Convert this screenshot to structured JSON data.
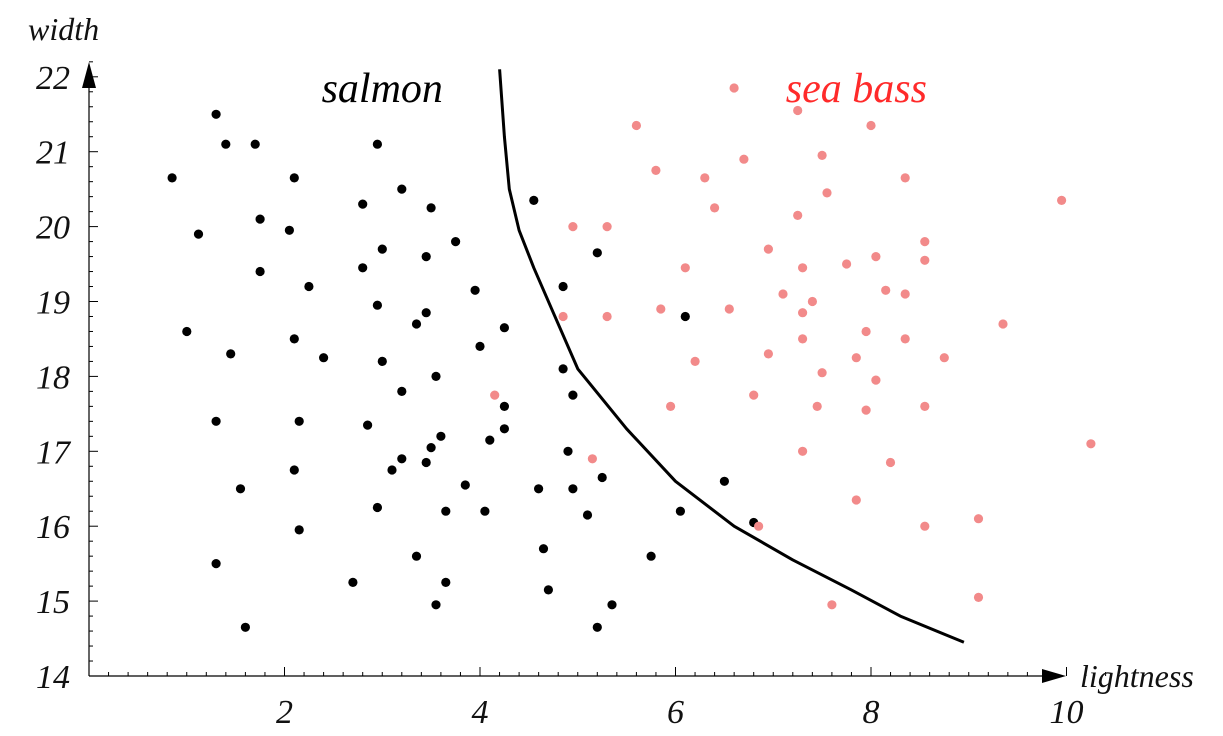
{
  "chart_data": {
    "type": "scatter",
    "xlabel": "lightness",
    "ylabel": "width",
    "xlim": [
      0,
      10.5
    ],
    "ylim": [
      14,
      22.4
    ],
    "x_ticks": [
      2,
      4,
      6,
      8,
      10
    ],
    "y_ticks": [
      14,
      15,
      16,
      17,
      18,
      19,
      20,
      21,
      22
    ],
    "grid": false,
    "colors": {
      "salmon": "#000000",
      "sea_bass": "#ff2a2a",
      "sea_bass_points": "#f28a8a",
      "boundary": "#000000",
      "axis": "#000000"
    },
    "series": [
      {
        "name": "salmon",
        "points": [
          [
            0.85,
            20.65
          ],
          [
            1.12,
            19.9
          ],
          [
            1.0,
            18.6
          ],
          [
            1.3,
            21.5
          ],
          [
            1.4,
            21.1
          ],
          [
            1.7,
            21.1
          ],
          [
            1.75,
            20.1
          ],
          [
            1.75,
            19.4
          ],
          [
            1.45,
            18.3
          ],
          [
            1.3,
            17.4
          ],
          [
            1.55,
            16.5
          ],
          [
            1.3,
            15.5
          ],
          [
            1.6,
            14.65
          ],
          [
            2.1,
            20.65
          ],
          [
            2.05,
            19.95
          ],
          [
            2.25,
            19.2
          ],
          [
            2.1,
            18.5
          ],
          [
            2.4,
            18.25
          ],
          [
            2.15,
            17.4
          ],
          [
            2.1,
            16.75
          ],
          [
            2.15,
            15.95
          ],
          [
            2.8,
            20.3
          ],
          [
            2.95,
            21.1
          ],
          [
            3.2,
            20.5
          ],
          [
            2.8,
            19.45
          ],
          [
            3.0,
            19.7
          ],
          [
            2.95,
            18.95
          ],
          [
            3.0,
            18.2
          ],
          [
            3.35,
            18.7
          ],
          [
            3.45,
            18.85
          ],
          [
            3.5,
            20.25
          ],
          [
            3.45,
            19.6
          ],
          [
            3.75,
            19.8
          ],
          [
            3.95,
            19.15
          ],
          [
            4.0,
            18.4
          ],
          [
            3.2,
            17.8
          ],
          [
            3.55,
            18.0
          ],
          [
            2.85,
            17.35
          ],
          [
            3.1,
            16.75
          ],
          [
            3.2,
            16.9
          ],
          [
            3.5,
            17.05
          ],
          [
            3.45,
            16.85
          ],
          [
            3.6,
            17.2
          ],
          [
            2.95,
            16.25
          ],
          [
            3.85,
            16.55
          ],
          [
            3.65,
            16.2
          ],
          [
            4.05,
            16.2
          ],
          [
            3.35,
            15.6
          ],
          [
            3.65,
            15.25
          ],
          [
            2.7,
            15.25
          ],
          [
            3.55,
            14.95
          ],
          [
            4.1,
            17.15
          ],
          [
            4.25,
            17.3
          ],
          [
            4.25,
            17.6
          ],
          [
            4.25,
            18.65
          ],
          [
            4.55,
            20.35
          ],
          [
            4.85,
            19.2
          ],
          [
            4.85,
            18.1
          ],
          [
            4.95,
            17.75
          ],
          [
            4.9,
            17.0
          ],
          [
            4.6,
            16.5
          ],
          [
            4.95,
            16.5
          ],
          [
            5.1,
            16.15
          ],
          [
            4.65,
            15.7
          ],
          [
            4.7,
            15.15
          ],
          [
            5.2,
            19.65
          ],
          [
            5.25,
            16.65
          ],
          [
            5.2,
            14.65
          ],
          [
            5.35,
            14.95
          ],
          [
            5.75,
            15.6
          ],
          [
            6.05,
            16.2
          ],
          [
            6.1,
            18.8
          ],
          [
            6.5,
            16.6
          ],
          [
            6.8,
            16.05
          ]
        ]
      },
      {
        "name": "sea bass",
        "points": [
          [
            4.15,
            17.75
          ],
          [
            4.85,
            18.8
          ],
          [
            4.95,
            20.0
          ],
          [
            5.3,
            20.0
          ],
          [
            5.3,
            18.8
          ],
          [
            5.15,
            16.9
          ],
          [
            5.6,
            21.35
          ],
          [
            5.8,
            20.75
          ],
          [
            5.85,
            18.9
          ],
          [
            5.95,
            17.6
          ],
          [
            6.1,
            19.45
          ],
          [
            6.2,
            18.2
          ],
          [
            6.3,
            20.65
          ],
          [
            6.4,
            20.25
          ],
          [
            6.55,
            18.9
          ],
          [
            6.6,
            21.85
          ],
          [
            6.7,
            20.9
          ],
          [
            6.8,
            17.75
          ],
          [
            6.85,
            16.0
          ],
          [
            6.95,
            19.7
          ],
          [
            6.95,
            18.3
          ],
          [
            7.1,
            19.1
          ],
          [
            7.25,
            21.55
          ],
          [
            7.25,
            20.15
          ],
          [
            7.3,
            19.45
          ],
          [
            7.3,
            18.85
          ],
          [
            7.3,
            18.5
          ],
          [
            7.3,
            17.0
          ],
          [
            7.4,
            19.0
          ],
          [
            7.45,
            17.6
          ],
          [
            7.5,
            20.95
          ],
          [
            7.5,
            18.05
          ],
          [
            7.55,
            20.45
          ],
          [
            7.6,
            14.95
          ],
          [
            7.75,
            19.5
          ],
          [
            7.85,
            18.25
          ],
          [
            7.85,
            16.35
          ],
          [
            7.95,
            18.6
          ],
          [
            7.95,
            17.55
          ],
          [
            8.0,
            21.35
          ],
          [
            8.05,
            17.95
          ],
          [
            8.05,
            19.6
          ],
          [
            8.15,
            19.15
          ],
          [
            8.2,
            16.85
          ],
          [
            8.35,
            19.1
          ],
          [
            8.35,
            18.5
          ],
          [
            8.35,
            20.65
          ],
          [
            8.55,
            19.8
          ],
          [
            8.55,
            19.55
          ],
          [
            8.55,
            17.6
          ],
          [
            8.55,
            16.0
          ],
          [
            8.75,
            18.25
          ],
          [
            9.1,
            16.1
          ],
          [
            9.1,
            15.05
          ],
          [
            9.35,
            18.7
          ],
          [
            9.95,
            20.35
          ],
          [
            10.25,
            17.1
          ]
        ]
      }
    ],
    "boundary": [
      [
        4.2,
        22.1
      ],
      [
        4.25,
        21.2
      ],
      [
        4.3,
        20.5
      ],
      [
        4.4,
        19.95
      ],
      [
        4.55,
        19.45
      ],
      [
        4.75,
        18.85
      ],
      [
        5.0,
        18.1
      ],
      [
        5.5,
        17.3
      ],
      [
        6.0,
        16.6
      ],
      [
        6.6,
        16.0
      ],
      [
        7.2,
        15.55
      ],
      [
        7.8,
        15.15
      ],
      [
        8.3,
        14.8
      ],
      [
        8.95,
        14.45
      ]
    ],
    "annotations": [
      {
        "text": "salmon",
        "x": 3.0,
        "y": 21.85,
        "color": "#000000"
      },
      {
        "text": "sea bass",
        "x": 7.85,
        "y": 21.85,
        "color": "#ff2a2a"
      }
    ]
  }
}
